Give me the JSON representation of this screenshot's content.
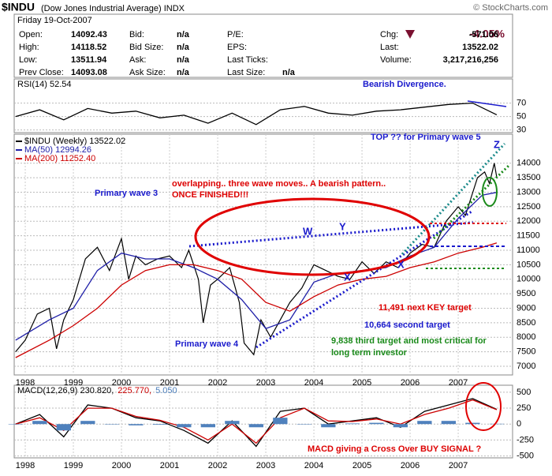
{
  "header": {
    "symbol": "$INDU",
    "name": "(Dow Jones Industrial Average) INDX",
    "source": "© StockCharts.com",
    "date": "Friday  19-Oct-2007",
    "change_pct": "-4.05%",
    "rows": [
      [
        "Open:",
        "14092.43",
        "Bid:",
        "n/a",
        "P/E:",
        "",
        "Chg:",
        "-571.06"
      ],
      [
        "High:",
        "14118.52",
        "Bid Size:",
        "n/a",
        "EPS:",
        "",
        "Last:",
        "13522.02"
      ],
      [
        "Low:",
        "13511.94",
        "Ask:",
        "n/a",
        "Last Ticks:",
        "",
        "Volume:",
        "3,217,216,256"
      ],
      [
        "Prev Close:",
        "14093.08",
        "Ask Size:",
        "n/a",
        "Last Size:",
        "n/a",
        "",
        ""
      ]
    ]
  },
  "chart_data": [
    {
      "type": "line",
      "ylim": [
        26,
        106
      ],
      "yticks": [
        30,
        50,
        70
      ],
      "xlim": [
        1997.77,
        2008.13
      ],
      "grid": true,
      "annotations": [
        "Bearish Divergence."
      ],
      "series": [
        {
          "name": "RSI(14) 52.54",
          "color": "#000000",
          "x": [
            1997.8,
            1998.3,
            1998.8,
            1999.3,
            1999.8,
            2000.3,
            2000.8,
            2001.3,
            2001.8,
            2002.3,
            2002.8,
            2003.3,
            2003.8,
            2004.3,
            2004.8,
            2005.3,
            2005.8,
            2006.3,
            2006.8,
            2007.3,
            2007.8
          ],
          "values": [
            50,
            60,
            45,
            62,
            55,
            58,
            48,
            52,
            40,
            55,
            38,
            60,
            65,
            55,
            52,
            58,
            60,
            64,
            68,
            70,
            52.54
          ]
        }
      ]
    },
    {
      "type": "line",
      "ylim": [
        6700,
        15000
      ],
      "yticks": [
        7000,
        7500,
        8000,
        8500,
        9000,
        9500,
        10000,
        10500,
        11000,
        11500,
        12000,
        12500,
        13000,
        13500,
        14000
      ],
      "xlim": [
        1997.77,
        2008.13
      ],
      "xticks": [
        1998,
        1999,
        2000,
        2001,
        2002,
        2003,
        2004,
        2005,
        2006,
        2007
      ],
      "grid": true,
      "annotations": [
        "TOP ??  for Primary wave 5",
        "Z",
        "overlapping.. three wave moves..  A bearish pattern..",
        "ONCE FINISHED!!!",
        "Primary wave 3",
        "W",
        "Y",
        "X",
        "X",
        "Primary wave 4",
        "11,491 next KEY target",
        "10,664 second target",
        "9,838 third target and most critical for",
        "long term investor"
      ],
      "series": [
        {
          "name": "$INDU (Weekly) 13522.02",
          "color": "#000000",
          "x": [
            1997.8,
            1998.0,
            1998.25,
            1998.5,
            1998.65,
            1998.8,
            1999.0,
            1999.25,
            1999.5,
            1999.75,
            2000.0,
            2000.15,
            2000.3,
            2000.5,
            2000.75,
            2001.0,
            2001.25,
            2001.4,
            2001.6,
            2001.7,
            2001.85,
            2002.0,
            2002.25,
            2002.45,
            2002.55,
            2002.75,
            2002.9,
            2003.1,
            2003.3,
            2003.5,
            2003.75,
            2004.0,
            2004.25,
            2004.5,
            2004.75,
            2005.0,
            2005.25,
            2005.5,
            2005.75,
            2006.0,
            2006.25,
            2006.5,
            2006.75,
            2007.0,
            2007.15,
            2007.4,
            2007.55,
            2007.65,
            2007.75,
            2007.8
          ],
          "values": [
            7500,
            7900,
            8800,
            9000,
            7600,
            8600,
            9300,
            10700,
            11100,
            10300,
            11400,
            10000,
            10800,
            10500,
            10700,
            10800,
            10400,
            11000,
            10000,
            8500,
            9800,
            10000,
            10400,
            9200,
            7800,
            7400,
            8600,
            8000,
            8600,
            9200,
            9700,
            10500,
            10300,
            10100,
            10000,
            10600,
            10200,
            10600,
            10400,
            10900,
            11200,
            11100,
            12000,
            12500,
            12200,
            13500,
            13700,
            13300,
            14000,
            13522
          ]
        },
        {
          "name": "MA(50) 12994.26",
          "color": "#1f1fa8",
          "x": [
            1997.8,
            1998.5,
            1999,
            1999.5,
            2000,
            2000.5,
            2001,
            2001.5,
            2002,
            2002.5,
            2003,
            2003.5,
            2004,
            2004.5,
            2005,
            2005.5,
            2006,
            2006.5,
            2007,
            2007.5,
            2007.8
          ],
          "values": [
            7900,
            8600,
            9000,
            10300,
            10900,
            10700,
            10700,
            10400,
            10000,
            9300,
            8300,
            8600,
            9900,
            10200,
            10300,
            10400,
            10800,
            11100,
            12100,
            12900,
            12994
          ]
        },
        {
          "name": "MA(200) 11252.40",
          "color": "#cc0000",
          "x": [
            1997.8,
            1998.5,
            1999,
            1999.5,
            2000,
            2000.5,
            2001,
            2001.5,
            2002,
            2002.5,
            2003,
            2003.5,
            2004,
            2004.5,
            2005,
            2005.5,
            2006,
            2006.5,
            2007,
            2007.5,
            2007.8
          ],
          "values": [
            7300,
            7900,
            8400,
            9000,
            9800,
            10300,
            10500,
            10500,
            10300,
            10000,
            9200,
            8900,
            9400,
            9800,
            10000,
            10100,
            10400,
            10600,
            10900,
            11100,
            11252
          ]
        }
      ]
    },
    {
      "type": "line",
      "ylim": [
        -530,
        610
      ],
      "yticks": [
        500,
        250,
        0,
        -250,
        -500
      ],
      "xlim": [
        1997.77,
        2008.13
      ],
      "xticks": [
        1998,
        1999,
        2000,
        2001,
        2002,
        2003,
        2004,
        2005,
        2006,
        2007
      ],
      "grid": true,
      "annotations": [
        "MACD  giving a Cross Over  BUY SIGNAL ?"
      ],
      "series": [
        {
          "name": "MACD(12,26,9) 230.820,",
          "color": "#000000",
          "x": [
            1997.8,
            1998.3,
            1998.8,
            1999.3,
            1999.8,
            2000.3,
            2000.8,
            2001.3,
            2001.8,
            2002.3,
            2002.8,
            2003.3,
            2003.8,
            2004.3,
            2004.8,
            2005.3,
            2005.8,
            2006.3,
            2006.8,
            2007.3,
            2007.8
          ],
          "values": [
            0,
            150,
            -200,
            300,
            250,
            100,
            50,
            -100,
            -300,
            50,
            -350,
            200,
            250,
            0,
            50,
            100,
            -50,
            200,
            300,
            400,
            231
          ]
        },
        {
          "name": "225.770,",
          "color": "#cc0000",
          "x": [
            1997.8,
            1998.3,
            1998.8,
            1999.3,
            1999.8,
            2000.3,
            2000.8,
            2001.3,
            2001.8,
            2002.3,
            2002.8,
            2003.3,
            2003.8,
            2004.3,
            2004.8,
            2005.3,
            2005.8,
            2006.3,
            2006.8,
            2007.3,
            2007.8
          ],
          "values": [
            0,
            100,
            -100,
            250,
            250,
            120,
            60,
            -50,
            -250,
            0,
            -300,
            100,
            250,
            50,
            40,
            80,
            0,
            150,
            250,
            380,
            226
          ]
        },
        {
          "name": "5.050",
          "color": "#4f81bd",
          "style": "histogram",
          "x": [
            1997.8,
            1998.3,
            1998.8,
            1999.3,
            1999.8,
            2000.3,
            2000.8,
            2001.3,
            2001.8,
            2002.3,
            2002.8,
            2003.3,
            2003.8,
            2004.3,
            2004.8,
            2005.3,
            2005.8,
            2006.3,
            2006.8,
            2007.3,
            2007.8
          ],
          "values": [
            0,
            50,
            -100,
            50,
            0,
            -20,
            -10,
            -50,
            -50,
            50,
            -50,
            100,
            0,
            -50,
            10,
            20,
            -50,
            50,
            50,
            20,
            5
          ]
        }
      ]
    }
  ]
}
